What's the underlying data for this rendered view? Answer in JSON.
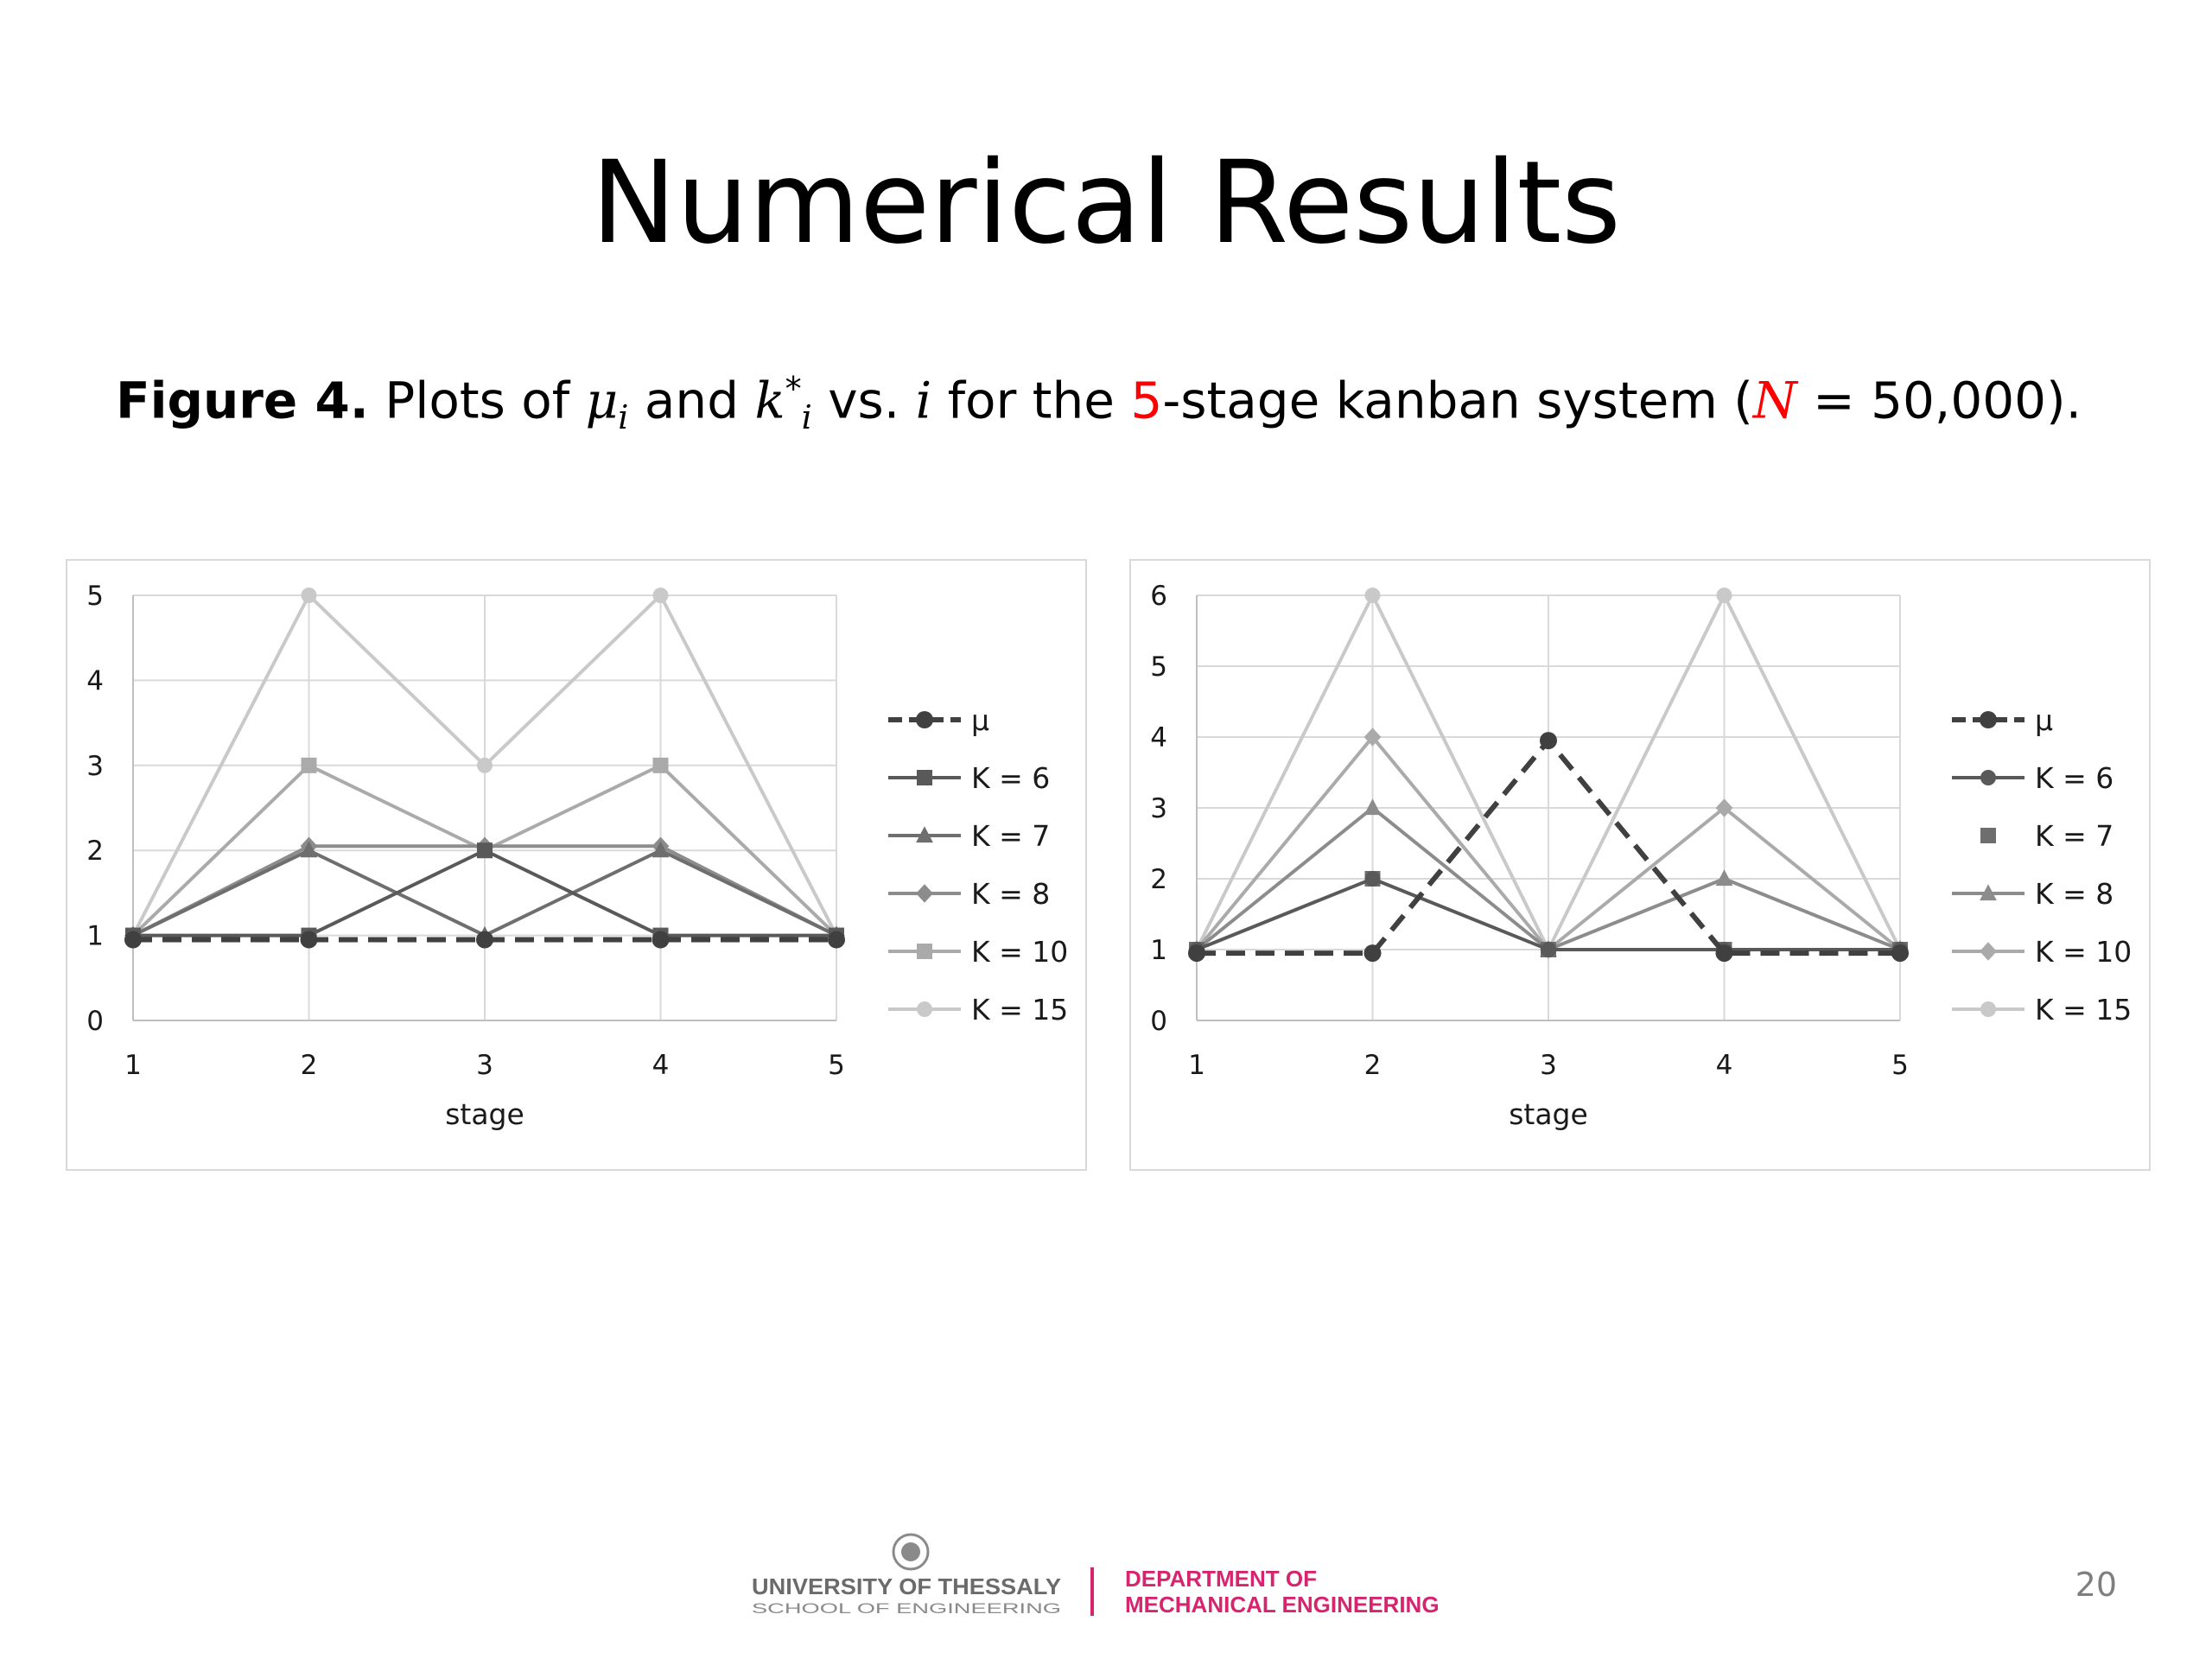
{
  "slide": {
    "title": "Numerical Results",
    "page_number": "20"
  },
  "caption": {
    "figure_label": "Figure 4.",
    "text_1": " Plots of ",
    "mu": "μ",
    "sub_i": "i",
    "text_2": " and ",
    "k": "k",
    "sup_star": "*",
    "sub_i2": "i",
    "text_3": " vs. ",
    "i": "i",
    "text_4": " for the ",
    "stages": "5",
    "text_5": "-stage kanban system (",
    "N": "N",
    "text_6": " = 50,000).",
    "highlight_color": "#ff0000"
  },
  "footer": {
    "university": "UNIVERSITY OF THESSALY",
    "school": "SCHOOL OF ENGINEERING",
    "department_line1": "DEPARTMENT OF",
    "department_line2": "MECHANICAL ENGINEERING",
    "department_color": "#d6246e",
    "divider_color": "#d6246e"
  },
  "chart_data": [
    {
      "type": "line",
      "x": [
        1,
        2,
        3,
        4,
        5
      ],
      "xticks": [
        "1",
        "2",
        "3",
        "4",
        "5"
      ],
      "xlabel": "stage",
      "ylabel": "",
      "ylim": [
        0,
        5
      ],
      "yticks": [
        "0",
        "1",
        "2",
        "3",
        "4",
        "5"
      ],
      "grid": true,
      "legend_position": "right",
      "series": [
        {
          "name": "K = 15",
          "values": [
            1,
            5,
            3,
            5,
            1
          ],
          "color": "#c9c9c9",
          "marker": "circle",
          "dashed": false
        },
        {
          "name": "K = 10",
          "values": [
            1,
            3,
            2,
            3,
            1
          ],
          "color": "#aaaaaa",
          "marker": "square",
          "dashed": false
        },
        {
          "name": "K = 8",
          "values": [
            1,
            2.05,
            2.05,
            2.05,
            1
          ],
          "color": "#8c8c8c",
          "marker": "diamond",
          "dashed": false
        },
        {
          "name": "K = 7",
          "values": [
            1,
            2,
            1,
            2,
            1
          ],
          "color": "#6e6e6e",
          "marker": "triangle",
          "dashed": false
        },
        {
          "name": "K = 6",
          "values": [
            1,
            1,
            2,
            1,
            1
          ],
          "color": "#595959",
          "marker": "square",
          "dashed": false
        },
        {
          "name": "μ",
          "values": [
            0.95,
            0.95,
            0.95,
            0.95,
            0.95
          ],
          "color": "#404040",
          "marker": "circle",
          "dashed": true
        }
      ],
      "legend_order": [
        "μ",
        "K = 6",
        "K = 7",
        "K = 8",
        "K = 10",
        "K = 15"
      ]
    },
    {
      "type": "line",
      "x": [
        1,
        2,
        3,
        4,
        5
      ],
      "xticks": [
        "1",
        "2",
        "3",
        "4",
        "5"
      ],
      "xlabel": "stage",
      "ylabel": "",
      "ylim": [
        0,
        6
      ],
      "yticks": [
        "0",
        "1",
        "2",
        "3",
        "4",
        "5",
        "6"
      ],
      "grid": true,
      "legend_position": "right",
      "series": [
        {
          "name": "K = 15",
          "values": [
            1,
            6,
            1,
            6,
            1
          ],
          "color": "#c9c9c9",
          "marker": "circle",
          "dashed": false
        },
        {
          "name": "K = 10",
          "values": [
            1,
            4,
            1,
            3,
            1
          ],
          "color": "#aaaaaa",
          "marker": "diamond",
          "dashed": false
        },
        {
          "name": "K = 8",
          "values": [
            1,
            3,
            1,
            2,
            1
          ],
          "color": "#8c8c8c",
          "marker": "triangle",
          "dashed": false
        },
        {
          "name": "K = 7",
          "values": [
            1,
            2,
            1,
            1,
            1
          ],
          "color": "#6e6e6e",
          "marker": "square",
          "dashed": false,
          "no_line": true
        },
        {
          "name": "K = 6",
          "values": [
            1,
            2,
            1,
            1,
            1
          ],
          "color": "#595959",
          "marker": "circle",
          "dashed": false
        },
        {
          "name": "μ",
          "values": [
            0.95,
            0.95,
            3.95,
            0.95,
            0.95
          ],
          "color": "#404040",
          "marker": "circle",
          "dashed": true
        }
      ],
      "legend_order": [
        "μ",
        "K = 6",
        "K = 7",
        "K = 8",
        "K = 10",
        "K = 15"
      ]
    }
  ]
}
